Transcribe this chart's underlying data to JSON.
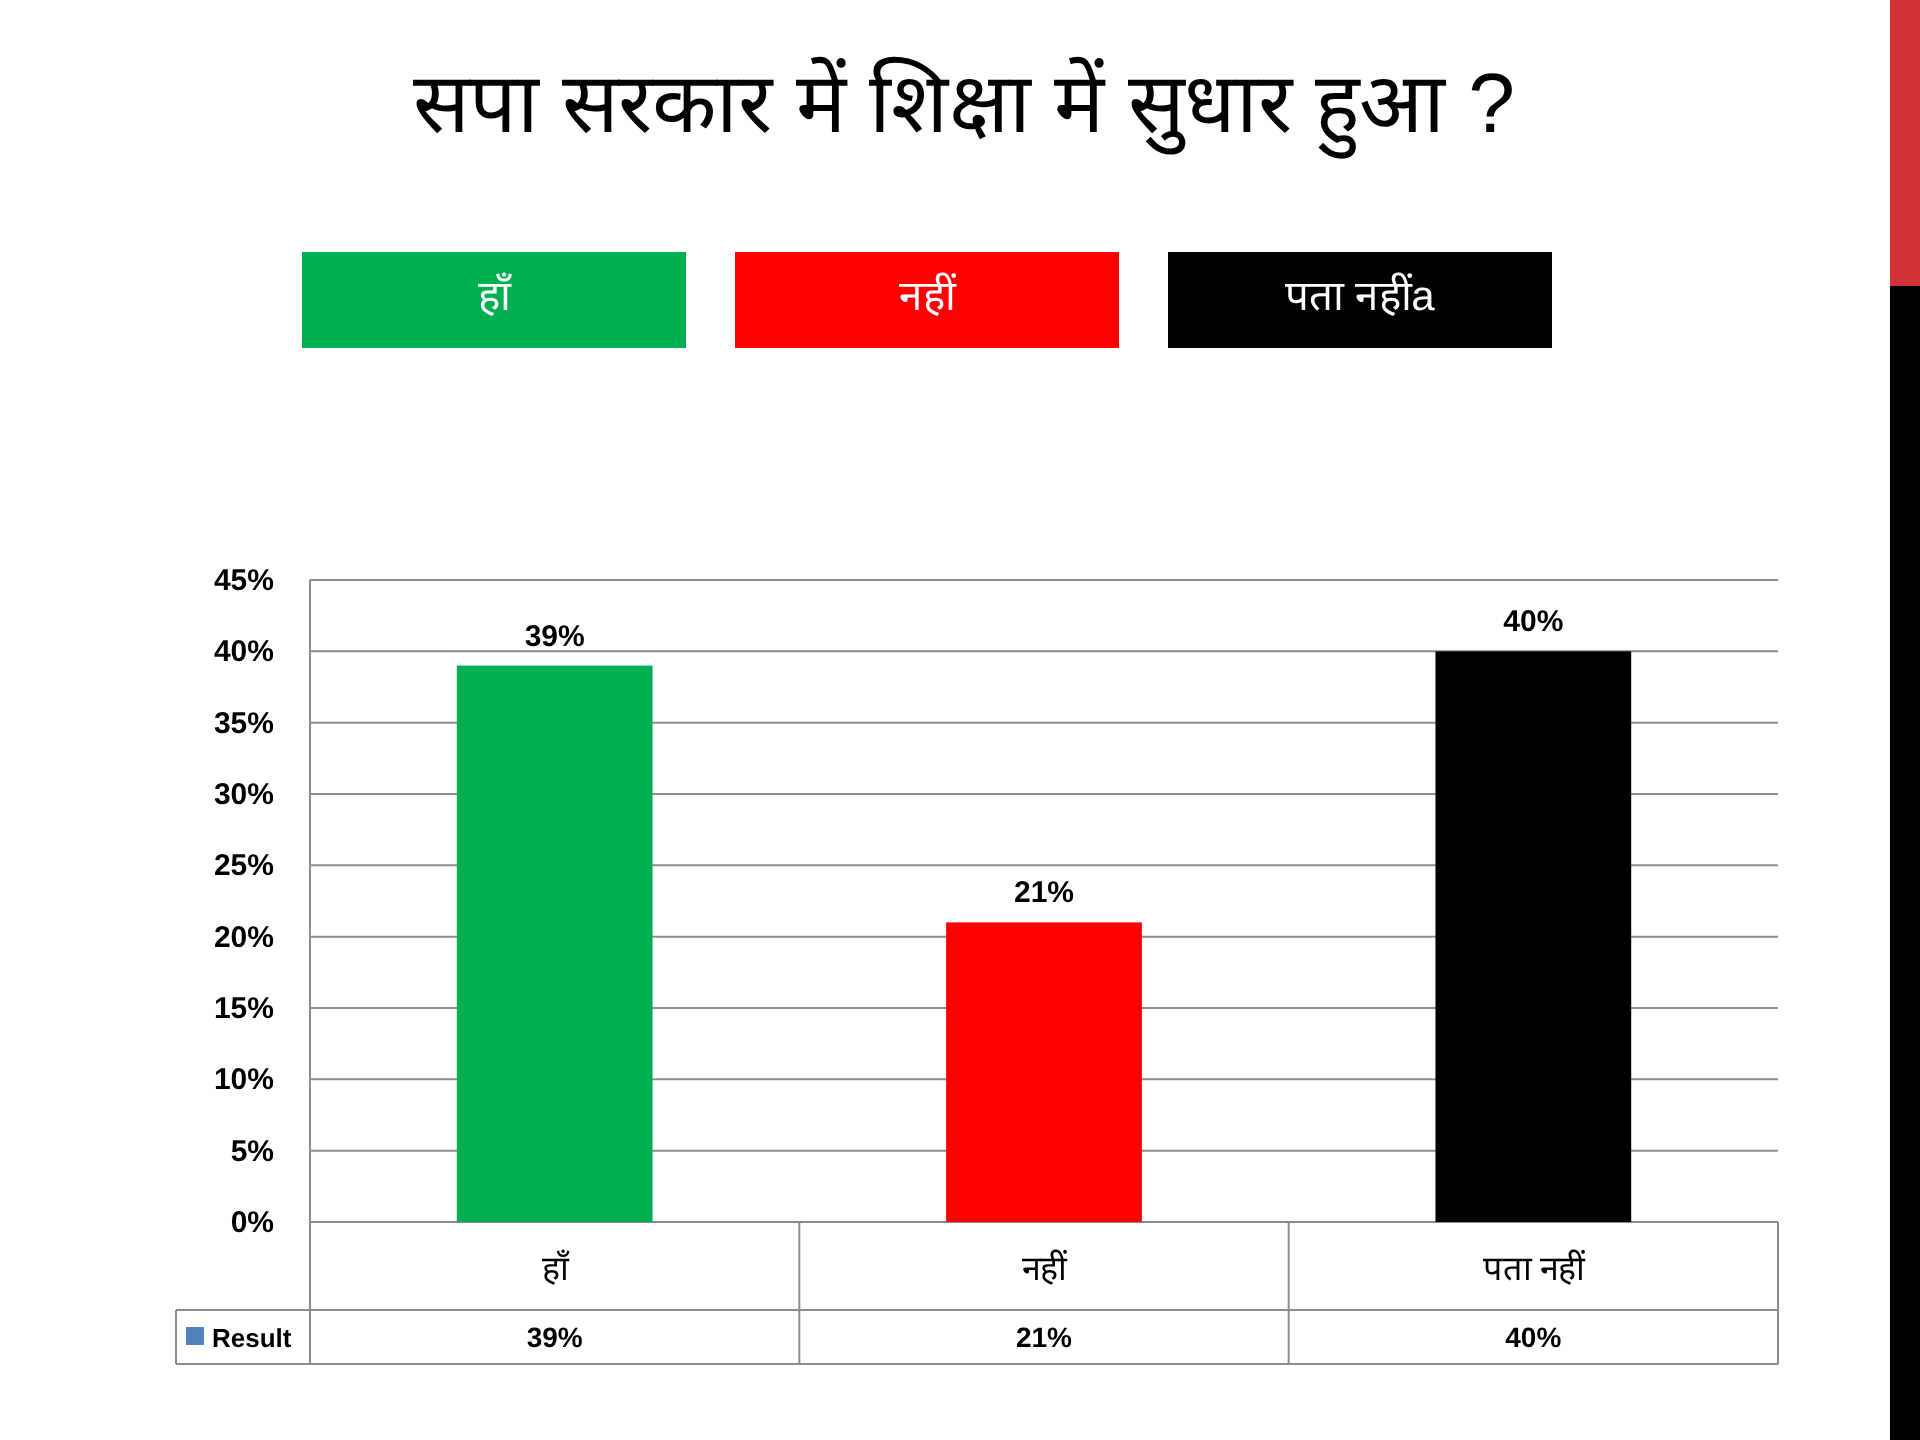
{
  "chart_data": {
    "type": "bar",
    "title": "सपा सरकार में शिक्षा में सुधार हुआ ?",
    "categories": [
      "हाँ",
      "नहीं",
      "पता नहीं"
    ],
    "series": [
      {
        "name": "Result",
        "color": "#4f81bd",
        "colors": [
          "#00b050",
          "#ff0000",
          "#000000"
        ],
        "values": [
          39,
          21,
          40
        ],
        "value_labels": [
          "39%",
          "21%",
          "40%"
        ]
      }
    ],
    "ylim": [
      0,
      45
    ],
    "yticks": [
      {
        "value": 0,
        "label": "0%"
      },
      {
        "value": 5,
        "label": "5%"
      },
      {
        "value": 10,
        "label": "10%"
      },
      {
        "value": 15,
        "label": "15%"
      },
      {
        "value": 20,
        "label": "20%"
      },
      {
        "value": 25,
        "label": "25%"
      },
      {
        "value": 30,
        "label": "30%"
      },
      {
        "value": 35,
        "label": "35%"
      },
      {
        "value": 40,
        "label": "40%"
      },
      {
        "value": 45,
        "label": "45%"
      }
    ],
    "grid": "y",
    "legend": "bottom",
    "annotations": [
      "हाँ",
      "नहीं",
      "पता नहींa"
    ]
  }
}
